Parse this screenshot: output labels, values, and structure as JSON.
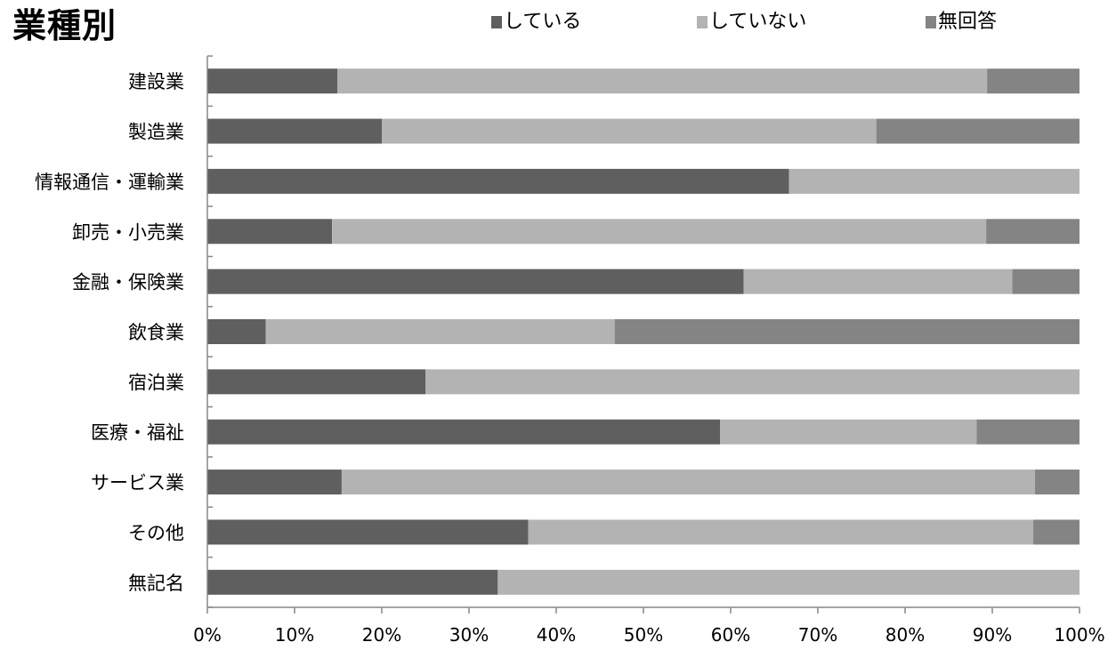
{
  "chart_data": {
    "type": "bar",
    "orientation": "horizontal",
    "stacked": true,
    "title": "業種別",
    "categories": [
      "建設業",
      "製造業",
      "情報通信・運輸業",
      "卸売・小売業",
      "金融・保険業",
      "飲食業",
      "宿泊業",
      "医療・福祉",
      "サービス業",
      "その他",
      "無記名"
    ],
    "series": [
      {
        "name": "している",
        "color": "#5f5f5f",
        "values": [
          14.9,
          20.0,
          66.7,
          14.3,
          61.5,
          6.7,
          25.0,
          58.8,
          15.4,
          36.8,
          33.3
        ]
      },
      {
        "name": "していない",
        "color": "#b3b3b3",
        "values": [
          74.5,
          56.7,
          33.3,
          75.0,
          30.8,
          40.0,
          75.0,
          29.4,
          79.5,
          57.9,
          66.7
        ]
      },
      {
        "name": "無回答",
        "color": "#848484",
        "values": [
          10.6,
          23.3,
          0.0,
          10.7,
          7.7,
          53.3,
          0.0,
          11.8,
          5.1,
          5.3,
          0.0
        ]
      }
    ],
    "xlim": [
      0,
      100
    ],
    "xticks": [
      "0%",
      "10%",
      "20%",
      "30%",
      "40%",
      "50%",
      "60%",
      "70%",
      "80%",
      "90%",
      "100%"
    ],
    "legend_position": "top",
    "grid": false
  }
}
